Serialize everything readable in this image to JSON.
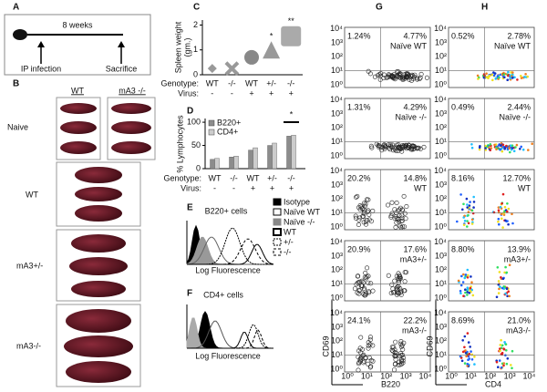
{
  "panel_labels": [
    "A",
    "B",
    "C",
    "D",
    "E",
    "F",
    "G",
    "H"
  ],
  "panel_a": {
    "duration": "8 weeks",
    "start": "IP infection",
    "end": "Sacrifice"
  },
  "panel_b": {
    "column_headers": [
      "WT",
      "mA3 -/-"
    ],
    "row_labels": [
      "Naive",
      "WT",
      "mA3+/-",
      "mA3-/-"
    ]
  },
  "chart_data": [
    {
      "type": "shape",
      "y_label": [
        "Spleen weight",
        "(gm.)"
      ],
      "row_labels": [
        "Genotype:",
        "Virus:"
      ],
      "categories": [
        "WT",
        "-/-",
        "WT",
        "+/-",
        "-/-"
      ],
      "virus": [
        "-",
        "-",
        "+",
        "+",
        "+"
      ],
      "values": [
        0.25,
        0.25,
        0.7,
        1.0,
        1.55
      ],
      "annotations": [
        null,
        null,
        null,
        "*",
        "**"
      ],
      "ylim": [
        0,
        2.2
      ],
      "yticks": [
        0,
        1,
        2
      ]
    },
    {
      "type": "bar",
      "y_label": "% Lymphocytes",
      "row_labels": [
        "Genotype:",
        "Virus:"
      ],
      "categories": [
        "WT",
        "-/-",
        "WT",
        "+/-",
        "-/-"
      ],
      "virus": [
        "-",
        "-",
        "+",
        "+",
        "+"
      ],
      "series": [
        {
          "name": "B220+",
          "color": "#8c8c8c",
          "values": [
            20,
            25,
            40,
            50,
            70
          ]
        },
        {
          "name": "CD4+",
          "color": "#cccccc",
          "values": [
            22,
            27,
            45,
            55,
            72
          ]
        }
      ],
      "annotation": "*",
      "ylim": [
        0,
        108
      ],
      "yticks": [
        0,
        50,
        100
      ]
    }
  ],
  "panel_e": {
    "title": "B220+ cells",
    "x_label": "Log Fluorescence",
    "legend": [
      "Isotype",
      "Naïve WT",
      "Naïve -/-",
      "WT",
      "+/-",
      "-/-"
    ]
  },
  "panel_f": {
    "title": "CD4+ cells",
    "x_label": "Log Fluorescence"
  },
  "flow": {
    "tick_labels": [
      "10⁰",
      "10¹",
      "10²",
      "10³",
      "10⁴"
    ],
    "y_label": "CD69",
    "panels": [
      {
        "x_label": "B220",
        "rows": [
          {
            "upper_left": "1.24%",
            "upper_right": "4.77%",
            "group": "Naïve WT"
          },
          {
            "upper_left": "1.31%",
            "upper_right": "4.29%",
            "group": "Naïve -/-"
          },
          {
            "upper_left": "20.2%",
            "upper_right": "14.8%",
            "group": "WT"
          },
          {
            "upper_left": "20.9%",
            "upper_right": "17.6%",
            "group": "mA3+/-"
          },
          {
            "upper_left": "24.1%",
            "upper_right": "22.2%",
            "group": "mA3-/-"
          }
        ]
      },
      {
        "x_label": "CD4",
        "rows": [
          {
            "upper_left": "0.52%",
            "upper_right": "2.78%",
            "group": "Naïve WT"
          },
          {
            "upper_left": "0.49%",
            "upper_right": "2.44%",
            "group": "Naïve -/-"
          },
          {
            "upper_left": "8.16%",
            "upper_right": "12.70%",
            "group": "WT"
          },
          {
            "upper_left": "8.80%",
            "upper_right": "13.9%",
            "group": "mA3+/-"
          },
          {
            "upper_left": "8.69%",
            "upper_right": "21.0%",
            "group": "mA3-/-"
          }
        ]
      }
    ]
  }
}
